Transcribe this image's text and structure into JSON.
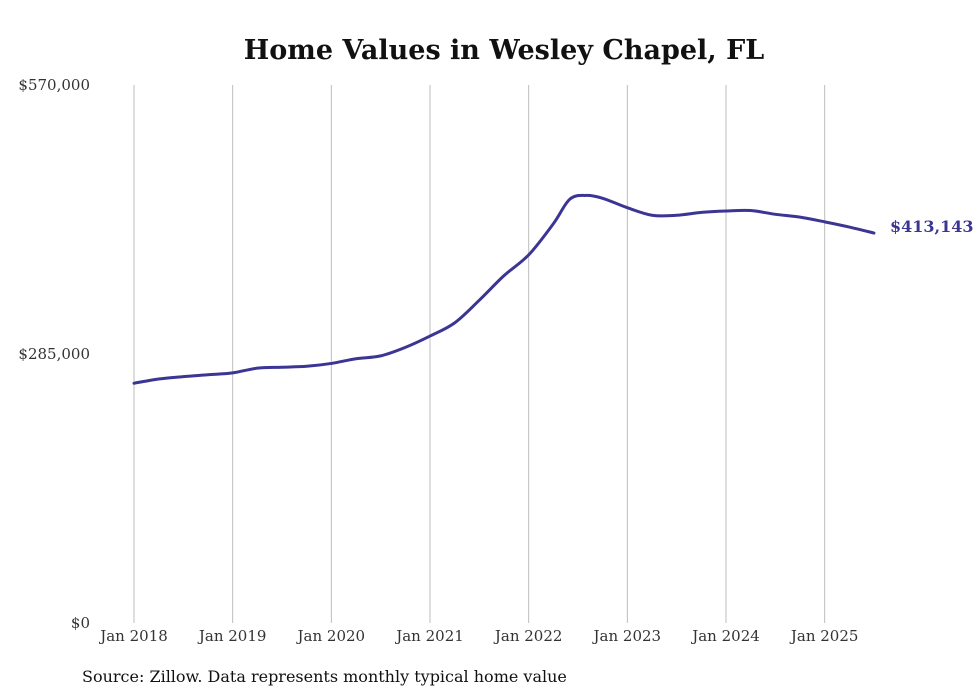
{
  "chart_data": {
    "type": "line",
    "title": "Home Values in Wesley Chapel, FL",
    "xlabel": "",
    "ylabel": "",
    "ylim": [
      0,
      570000
    ],
    "y_ticks": [
      {
        "value": 0,
        "label": "$0"
      },
      {
        "value": 285000,
        "label": "$285,000"
      },
      {
        "value": 570000,
        "label": "$570,000"
      }
    ],
    "x_ticks": [
      {
        "value": "2018-01",
        "label": "Jan 2018"
      },
      {
        "value": "2019-01",
        "label": "Jan 2019"
      },
      {
        "value": "2020-01",
        "label": "Jan 2020"
      },
      {
        "value": "2021-01",
        "label": "Jan 2021"
      },
      {
        "value": "2022-01",
        "label": "Jan 2022"
      },
      {
        "value": "2023-01",
        "label": "Jan 2023"
      },
      {
        "value": "2024-01",
        "label": "Jan 2024"
      },
      {
        "value": "2025-01",
        "label": "Jan 2025"
      }
    ],
    "grid": "vertical",
    "line_color": "#3b3594",
    "series": [
      {
        "points": [
          {
            "x": "2018-01",
            "y": 254000
          },
          {
            "x": "2018-04",
            "y": 258500
          },
          {
            "x": "2018-07",
            "y": 261000
          },
          {
            "x": "2018-10",
            "y": 263000
          },
          {
            "x": "2019-01",
            "y": 265000
          },
          {
            "x": "2019-04",
            "y": 270000
          },
          {
            "x": "2019-07",
            "y": 271000
          },
          {
            "x": "2019-10",
            "y": 272000
          },
          {
            "x": "2020-01",
            "y": 275000
          },
          {
            "x": "2020-04",
            "y": 280000
          },
          {
            "x": "2020-07",
            "y": 283000
          },
          {
            "x": "2020-10",
            "y": 292000
          },
          {
            "x": "2021-01",
            "y": 304000
          },
          {
            "x": "2021-04",
            "y": 318000
          },
          {
            "x": "2021-07",
            "y": 342000
          },
          {
            "x": "2021-10",
            "y": 368000
          },
          {
            "x": "2022-01",
            "y": 390000
          },
          {
            "x": "2022-04",
            "y": 423000
          },
          {
            "x": "2022-06",
            "y": 449000
          },
          {
            "x": "2022-08",
            "y": 453000
          },
          {
            "x": "2022-10",
            "y": 450000
          },
          {
            "x": "2023-01",
            "y": 440000
          },
          {
            "x": "2023-04",
            "y": 432000
          },
          {
            "x": "2023-07",
            "y": 432000
          },
          {
            "x": "2023-10",
            "y": 435000
          },
          {
            "x": "2024-01",
            "y": 436500
          },
          {
            "x": "2024-04",
            "y": 437000
          },
          {
            "x": "2024-07",
            "y": 433000
          },
          {
            "x": "2024-10",
            "y": 430000
          },
          {
            "x": "2025-01",
            "y": 425000
          },
          {
            "x": "2025-04",
            "y": 419500
          },
          {
            "x": "2025-07",
            "y": 413143
          }
        ]
      }
    ],
    "end_label": "$413,143"
  },
  "footer": {
    "source": "Source: Zillow. Data represents monthly typical home value"
  }
}
